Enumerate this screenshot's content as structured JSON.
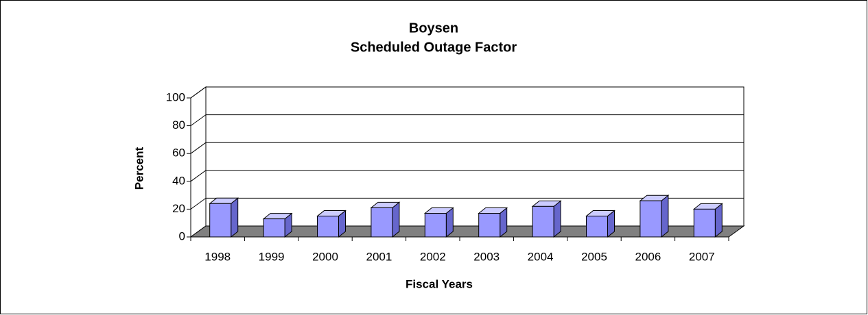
{
  "chart_data": {
    "type": "bar3d",
    "title": "Boysen",
    "subtitle": "Scheduled Outage Factor",
    "x_label": "Fiscal Years",
    "y_label": "Percent",
    "categories": [
      "1998",
      "1999",
      "2000",
      "2001",
      "2002",
      "2003",
      "2004",
      "2005",
      "2006",
      "2007"
    ],
    "values": [
      24,
      13,
      15,
      21,
      17,
      17,
      22,
      15,
      26,
      20
    ],
    "color": "#9999ff",
    "side_color": "#6666cc",
    "top_color": "#ccccff",
    "floor_color": "#808080",
    "ylim": [
      0,
      100
    ],
    "yticks": [
      0,
      20,
      40,
      60,
      80,
      100
    ],
    "grid": true
  }
}
